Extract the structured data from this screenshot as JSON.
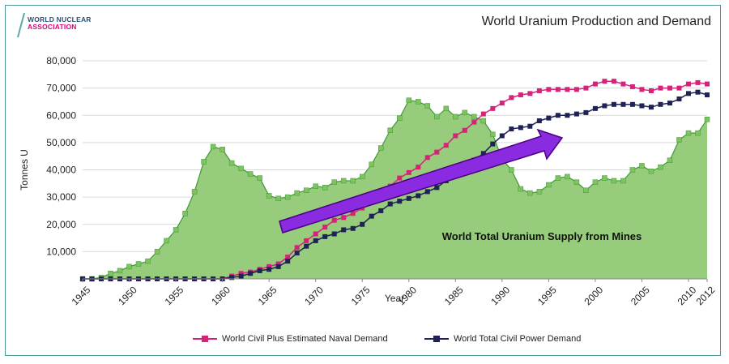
{
  "logo": {
    "line1": "WORLD NUCLEAR",
    "line2": "ASSOCIATION"
  },
  "colors": {
    "supply_fill": "#97cc7c",
    "supply_line": "#3f9a3a",
    "naval": "#d6237a",
    "civil": "#1f2254",
    "arrow": "#8a2be2",
    "frame": "#4a9a96"
  },
  "chart_data": {
    "type": "area",
    "title": "World Uranium Production and Demand",
    "xlabel": "Year",
    "ylabel": "Tonnes U",
    "xlim": [
      1945,
      2012
    ],
    "ylim": [
      0,
      80000
    ],
    "x_ticks": [
      "1945",
      "1950",
      "1955",
      "1960",
      "1965",
      "1970",
      "1975",
      "1980",
      "1985",
      "1990",
      "1995",
      "2000",
      "2005",
      "2010",
      "2012"
    ],
    "y_ticks": [
      "80,000",
      "70,000",
      "60,000",
      "50,000",
      "40,000",
      "30,000",
      "20,000",
      "10,000"
    ],
    "x": [
      1945,
      1946,
      1947,
      1948,
      1949,
      1950,
      1951,
      1952,
      1953,
      1954,
      1955,
      1956,
      1957,
      1958,
      1959,
      1960,
      1961,
      1962,
      1963,
      1964,
      1965,
      1966,
      1967,
      1968,
      1969,
      1970,
      1971,
      1972,
      1973,
      1974,
      1975,
      1976,
      1977,
      1978,
      1979,
      1980,
      1981,
      1982,
      1983,
      1984,
      1985,
      1986,
      1987,
      1988,
      1989,
      1990,
      1991,
      1992,
      1993,
      1994,
      1995,
      1996,
      1997,
      1998,
      1999,
      2000,
      2001,
      2002,
      2003,
      2004,
      2005,
      2006,
      2007,
      2008,
      2009,
      2010,
      2011,
      2012
    ],
    "series": [
      {
        "name": "World Total Uranium Supply from Mines",
        "kind": "area",
        "values": [
          0,
          0,
          500,
          2000,
          3000,
          4500,
          5500,
          6500,
          10000,
          14000,
          18000,
          24000,
          32000,
          43000,
          48500,
          47500,
          42500,
          40500,
          38500,
          37000,
          30500,
          29500,
          30000,
          31500,
          32500,
          34000,
          33500,
          35500,
          36000,
          36000,
          37500,
          42000,
          48000,
          54500,
          59000,
          65500,
          65000,
          63500,
          59500,
          62500,
          59500,
          61000,
          59500,
          58000,
          53000,
          44000,
          40000,
          33000,
          31500,
          32000,
          34500,
          37000,
          37500,
          35500,
          32500,
          35500,
          37000,
          36000,
          36000,
          40000,
          41500,
          39500,
          41000,
          43500,
          51000,
          53500,
          53500,
          58500
        ]
      },
      {
        "name": "World Civil Plus Estimated Naval Demand",
        "kind": "line",
        "values": [
          0,
          0,
          0,
          0,
          0,
          0,
          0,
          0,
          0,
          0,
          0,
          0,
          0,
          0,
          0,
          0,
          1000,
          2000,
          2500,
          3500,
          4500,
          5500,
          8000,
          11500,
          14000,
          16500,
          19000,
          21500,
          22500,
          24000,
          26000,
          28500,
          31000,
          34000,
          37000,
          39000,
          41000,
          44500,
          46500,
          49000,
          52500,
          54500,
          57500,
          60500,
          62500,
          64500,
          66500,
          67500,
          68000,
          69000,
          69500,
          69500,
          69500,
          69500,
          70000,
          71500,
          72500,
          72500,
          71500,
          70500,
          69500,
          69000,
          70000,
          70000,
          70000,
          71500,
          72000,
          71500
        ]
      },
      {
        "name": "World Total Civil Power Demand",
        "kind": "line",
        "values": [
          0,
          0,
          0,
          0,
          0,
          0,
          0,
          0,
          0,
          0,
          0,
          0,
          0,
          0,
          0,
          0,
          500,
          1000,
          2000,
          3000,
          3500,
          4500,
          6500,
          9500,
          12000,
          14000,
          15500,
          16500,
          18000,
          18500,
          20000,
          23000,
          25000,
          27500,
          28500,
          29500,
          30500,
          32000,
          33500,
          36000,
          38500,
          41000,
          43500,
          46000,
          49500,
          52500,
          55000,
          55500,
          56000,
          58000,
          59000,
          60000,
          60000,
          60500,
          61000,
          62500,
          63500,
          64000,
          64000,
          64000,
          63500,
          63000,
          64000,
          64500,
          66000,
          68000,
          68500,
          67500
        ]
      }
    ],
    "annotations": [
      {
        "text": "World Total Uranium Supply from Mines"
      }
    ]
  }
}
